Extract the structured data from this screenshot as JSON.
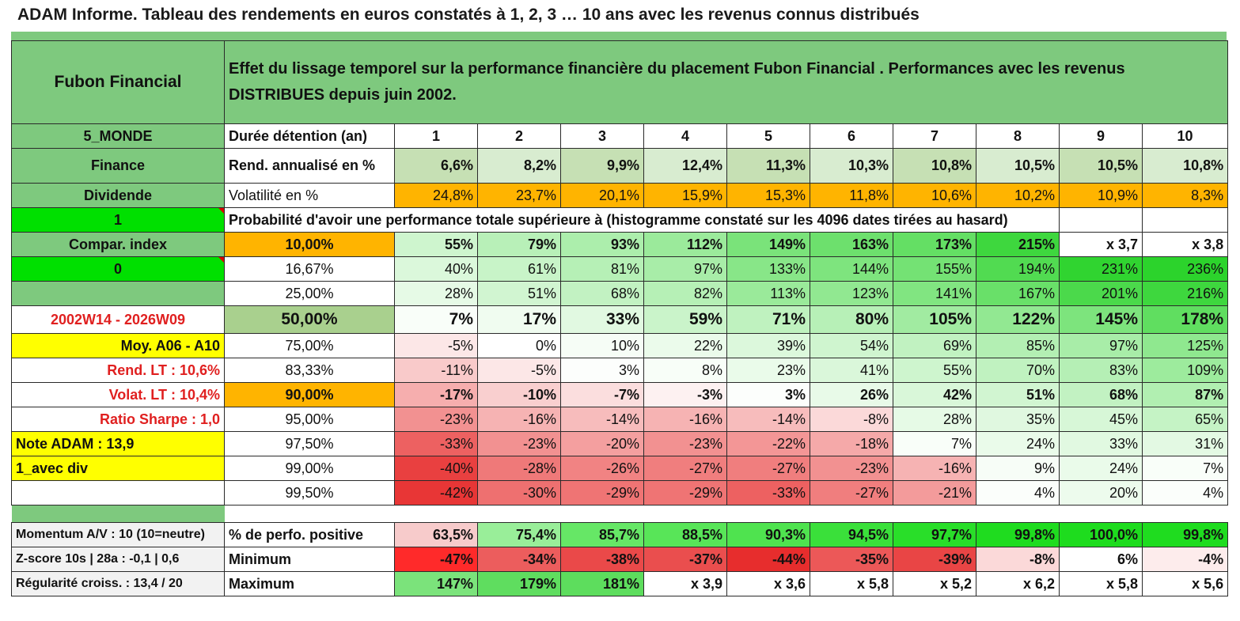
{
  "title": "ADAM Informe. Tableau des rendements en euros constatés à 1, 2, 3 … 10 ans avec les revenus connus distribués",
  "header": {
    "name": "Fubon Financial",
    "description": "Effet du lissage temporel sur la performance financière du placement Fubon Financial . Performances avec les revenus DISTRIBUES depuis juin 2002."
  },
  "left": {
    "zone": "5_MONDE",
    "sector": "Finance",
    "type": "Dividende",
    "flag1": "1",
    "compar_index": "Compar. index",
    "flag0": "0",
    "blank": "",
    "period": "2002W14 - 2026W09",
    "moy": "Moy. A06 - A10",
    "rend_lt": "Rend. LT :   10,6%",
    "volat_lt": "Volat. LT :   10,4%",
    "sharpe": "Ratio Sharpe :    1,0",
    "note": "Note ADAM : 13,9",
    "avec_div": "1_avec div",
    "momentum": "Momentum A/V : 10 (10=neutre)",
    "zscore": "Z-score 10s | 28a : -0,1 | 0,6",
    "regularite": "Régularité croiss. : 13,4 / 20"
  },
  "rows": {
    "duree_label": "Durée détention (an)",
    "years": [
      "1",
      "2",
      "3",
      "4",
      "5",
      "6",
      "7",
      "8",
      "9",
      "10"
    ],
    "rend_label": "Rend. annualisé en %",
    "rend": [
      "6,6%",
      "8,2%",
      "9,9%",
      "12,4%",
      "11,3%",
      "10,3%",
      "10,8%",
      "10,5%",
      "10,5%",
      "10,8%"
    ],
    "vol_label": "Volatilité en %",
    "vol": [
      "24,8%",
      "23,7%",
      "20,1%",
      "15,9%",
      "15,3%",
      "11,8%",
      "10,6%",
      "10,2%",
      "10,9%",
      "8,3%"
    ],
    "proba_label": "Probabilité d'avoir une performance totale supérieure à (histogramme constaté sur les 4096 dates tirées au hasard)",
    "quantiles": [
      {
        "p": "10,00%",
        "v": [
          "55%",
          "79%",
          "93%",
          "112%",
          "149%",
          "163%",
          "173%",
          "215%",
          "x 3,7",
          "x 3,8"
        ]
      },
      {
        "p": "16,67%",
        "v": [
          "40%",
          "61%",
          "81%",
          "97%",
          "133%",
          "144%",
          "155%",
          "194%",
          "231%",
          "236%"
        ]
      },
      {
        "p": "25,00%",
        "v": [
          "28%",
          "51%",
          "68%",
          "82%",
          "113%",
          "123%",
          "141%",
          "167%",
          "201%",
          "216%"
        ]
      },
      {
        "p": "50,00%",
        "v": [
          "7%",
          "17%",
          "33%",
          "59%",
          "71%",
          "80%",
          "105%",
          "122%",
          "145%",
          "178%"
        ]
      },
      {
        "p": "75,00%",
        "v": [
          "-5%",
          "0%",
          "10%",
          "22%",
          "39%",
          "54%",
          "69%",
          "85%",
          "97%",
          "125%"
        ]
      },
      {
        "p": "83,33%",
        "v": [
          "-11%",
          "-5%",
          "3%",
          "8%",
          "23%",
          "41%",
          "55%",
          "70%",
          "83%",
          "109%"
        ]
      },
      {
        "p": "90,00%",
        "v": [
          "-17%",
          "-10%",
          "-7%",
          "-3%",
          "3%",
          "26%",
          "42%",
          "51%",
          "68%",
          "87%"
        ]
      },
      {
        "p": "95,00%",
        "v": [
          "-23%",
          "-16%",
          "-14%",
          "-16%",
          "-14%",
          "-8%",
          "28%",
          "35%",
          "45%",
          "65%"
        ]
      },
      {
        "p": "97,50%",
        "v": [
          "-33%",
          "-23%",
          "-20%",
          "-23%",
          "-22%",
          "-18%",
          "7%",
          "24%",
          "33%",
          "31%"
        ]
      },
      {
        "p": "99,00%",
        "v": [
          "-40%",
          "-28%",
          "-26%",
          "-27%",
          "-27%",
          "-23%",
          "-16%",
          "9%",
          "24%",
          "7%"
        ]
      },
      {
        "p": "99,50%",
        "v": [
          "-42%",
          "-30%",
          "-29%",
          "-29%",
          "-33%",
          "-27%",
          "-21%",
          "4%",
          "20%",
          "4%"
        ]
      }
    ],
    "pos_label": "% de perfo. positive",
    "pos": [
      "63,5%",
      "75,4%",
      "85,7%",
      "88,5%",
      "90,3%",
      "94,5%",
      "97,7%",
      "99,8%",
      "100,0%",
      "99,8%"
    ],
    "min_label": "Minimum",
    "min": [
      "-47%",
      "-34%",
      "-38%",
      "-37%",
      "-44%",
      "-35%",
      "-39%",
      "-8%",
      "6%",
      "-4%"
    ],
    "max_label": "Maximum",
    "max": [
      "147%",
      "179%",
      "181%",
      "x 3,9",
      "x 3,6",
      "x 5,8",
      "x 5,2",
      "x 6,2",
      "x 5,8",
      "x 5,6"
    ]
  },
  "colors": {
    "header_green": "#7ec97e",
    "bright_green": "#00e000",
    "yellow": "#ffff00",
    "orange": "#ffb400",
    "label_red": "#e02020"
  }
}
